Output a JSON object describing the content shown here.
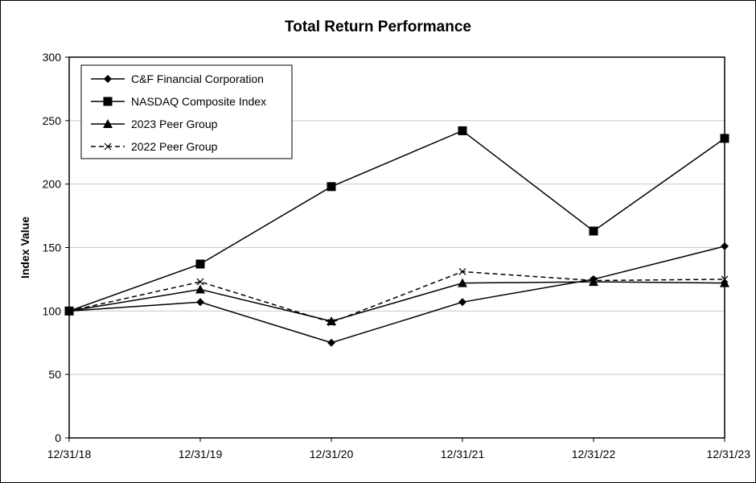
{
  "chart_data": {
    "type": "line",
    "title": "Total Return Performance",
    "xlabel": "",
    "ylabel": "Index Value",
    "categories": [
      "12/31/18",
      "12/31/19",
      "12/31/20",
      "12/31/21",
      "12/31/22",
      "12/31/23"
    ],
    "ylim": [
      0,
      300
    ],
    "yticks": [
      0,
      50,
      100,
      150,
      200,
      250,
      300
    ],
    "grid": true,
    "legend_position": "top-left",
    "series": [
      {
        "name": "C&F Financial Corporation",
        "marker": "diamond",
        "dash": "solid",
        "values": [
          100,
          107,
          75,
          107,
          125,
          151
        ]
      },
      {
        "name": "NASDAQ Composite Index",
        "marker": "square",
        "dash": "solid",
        "values": [
          100,
          137,
          198,
          242,
          163,
          236
        ]
      },
      {
        "name": "2023 Peer Group",
        "marker": "triangle",
        "dash": "solid",
        "values": [
          100,
          117,
          92,
          122,
          123,
          122
        ]
      },
      {
        "name": "2022 Peer Group",
        "marker": "x",
        "dash": "dashed",
        "values": [
          100,
          123,
          91,
          131,
          124,
          125
        ]
      }
    ]
  }
}
